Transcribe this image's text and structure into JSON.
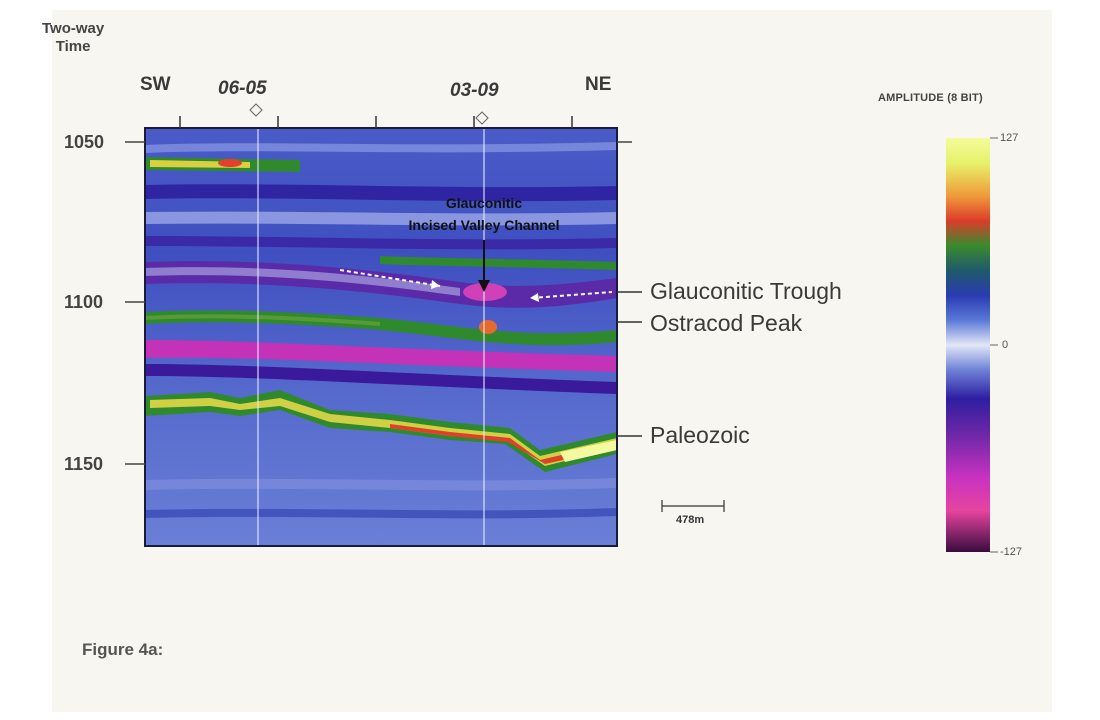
{
  "figure": {
    "axis_title_line1": "Two-way",
    "axis_title_line2": "Time",
    "direction_left": "SW",
    "direction_right": "NE",
    "wells": [
      {
        "name": "06-05"
      },
      {
        "name": "03-09"
      }
    ],
    "time_ticks": [
      {
        "label": "1050"
      },
      {
        "label": "1100"
      },
      {
        "label": "1150"
      }
    ],
    "annotation_line1": "Glauconitic",
    "annotation_line2": "Incised Valley Channel",
    "horizons": [
      {
        "label": "Glauconitic Trough"
      },
      {
        "label": "Ostracod Peak"
      },
      {
        "label": "Paleozoic"
      }
    ],
    "scale_bar_label": "478m",
    "colorbar": {
      "title": "AMPLITUDE (8 BIT)",
      "max_label": "127",
      "mid_label": "0",
      "min_label": "-127",
      "colors": [
        "#e9f57a",
        "#f2d64a",
        "#ea6a2c",
        "#dc3c2a",
        "#2f8a2c",
        "#2a4ab8",
        "#6d8ce0",
        "#d8dcf2",
        "#6b78d4",
        "#3020a0",
        "#7a2aa8",
        "#d030c0",
        "#e04aa8",
        "#4a1050"
      ]
    },
    "caption": "Figure 4a:"
  }
}
